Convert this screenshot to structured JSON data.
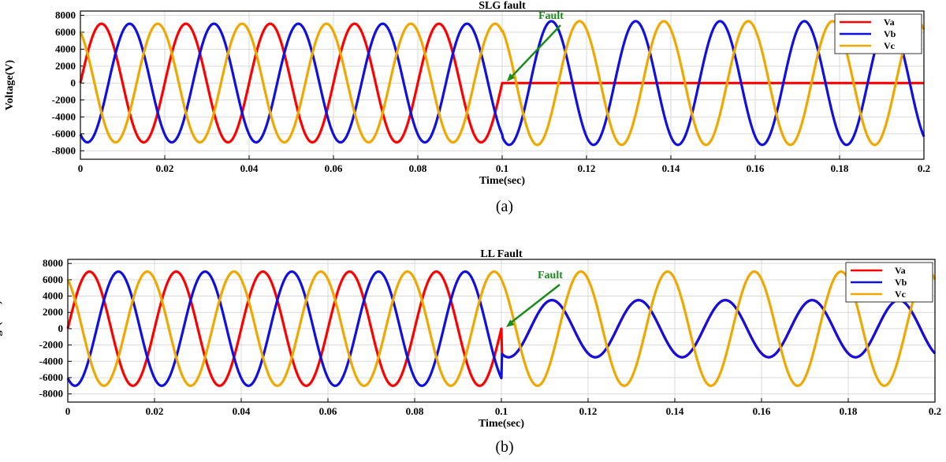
{
  "colors": {
    "va": "#ff0000",
    "vb": "#1010e0",
    "vc": "#f0a800",
    "arrow": "#1a8a1a",
    "grid": "#d9d9d9"
  },
  "chart_data": [
    {
      "type": "line",
      "title": "SLG fault",
      "xlabel": "Time(sec)",
      "ylabel": "Voltage(V)",
      "xlim": [
        0,
        0.2
      ],
      "ylim": [
        -9000,
        8500
      ],
      "xticks": [
        "0",
        "0.02",
        "0.04",
        "0.06",
        "0.08",
        "0.1",
        "0.12",
        "0.14",
        "0.16",
        "0.18",
        "0.2"
      ],
      "yticks": [
        "8000",
        "6000",
        "4000",
        "2000",
        "0",
        "-2000",
        "-4000",
        "-6000",
        "-8000"
      ],
      "grid": true,
      "legend_position": "top-right",
      "series": [
        {
          "name": "Va",
          "color_key": "va",
          "amplitude_pre": 7000,
          "amplitude_post": 0,
          "frequency_hz": 50,
          "phase_deg": 0
        },
        {
          "name": "Vb",
          "color_key": "vb",
          "amplitude_pre": 7000,
          "amplitude_post": 7300,
          "frequency_hz": 50,
          "phase_deg": -120
        },
        {
          "name": "Vc",
          "color_key": "vc",
          "amplitude_pre": 7000,
          "amplitude_post": 7300,
          "frequency_hz": 50,
          "phase_deg": 120
        }
      ],
      "fault_time": 0.1,
      "annotation": {
        "text": "Fault",
        "x": 0.1,
        "y": 0
      },
      "caption": "(a)"
    },
    {
      "type": "line",
      "title": "LL Fault",
      "xlabel": "Time(sec)",
      "ylabel": "Voltage(volt)",
      "xlim": [
        0,
        0.2
      ],
      "ylim": [
        -9000,
        8500
      ],
      "xticks": [
        "0",
        "0.02",
        "0.04",
        "0.06",
        "0.08",
        "0.1",
        "0.12",
        "0.14",
        "0.16",
        "0.18",
        "0.2"
      ],
      "yticks": [
        "8000",
        "6000",
        "4000",
        "2000",
        "0",
        "-2000",
        "-4000",
        "-6000",
        "-8000"
      ],
      "grid": true,
      "legend_position": "top-right",
      "series": [
        {
          "name": "Va",
          "color_key": "va",
          "amplitude_pre": 7000,
          "amplitude_post": 3500,
          "frequency_hz": 50,
          "phase_deg": 0,
          "post_note": "Va overlapped by Vb after fault"
        },
        {
          "name": "Vb",
          "color_key": "vb",
          "amplitude_pre": 7000,
          "amplitude_post": 3500,
          "frequency_hz": 50,
          "phase_deg": -120
        },
        {
          "name": "Vc",
          "color_key": "vc",
          "amplitude_pre": 7000,
          "amplitude_post": 7000,
          "frequency_hz": 50,
          "phase_deg": 120
        }
      ],
      "fault_time": 0.1,
      "annotation": {
        "text": "Fault",
        "x": 0.1,
        "y": 0
      },
      "caption": "(b)"
    }
  ]
}
